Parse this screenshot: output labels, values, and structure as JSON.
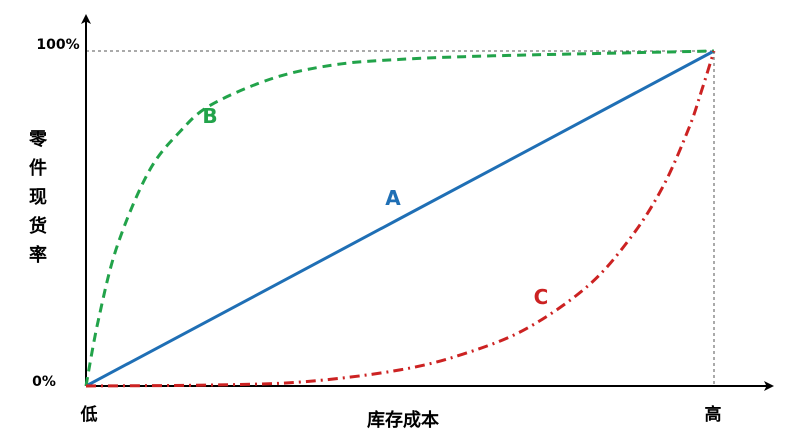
{
  "chart_data": {
    "type": "line",
    "title": "",
    "xlabel": "库存成本",
    "ylabel": "零件现货率",
    "x_tick_labels": [
      "低",
      "高"
    ],
    "y_tick_labels": [
      "0%",
      "100%"
    ],
    "xlim": [
      0,
      1
    ],
    "ylim": [
      0,
      100
    ],
    "grid": false,
    "legend": "none",
    "series": [
      {
        "name": "A",
        "color": "#1f6fb5",
        "style": "solid",
        "x": [
          0,
          0.25,
          0.5,
          0.75,
          1
        ],
        "y": [
          0,
          25,
          50,
          75,
          100
        ]
      },
      {
        "name": "B",
        "color": "#22a34a",
        "style": "dashed",
        "x": [
          0,
          0.02,
          0.05,
          0.1,
          0.15,
          0.2,
          0.3,
          0.4,
          0.5,
          0.6,
          0.7,
          0.8,
          0.9,
          1
        ],
        "y": [
          0,
          20,
          42,
          64,
          76,
          84,
          92,
          96,
          97.5,
          98.3,
          98.8,
          99.2,
          99.6,
          100
        ]
      },
      {
        "name": "C",
        "color": "#cc2222",
        "style": "dashdot",
        "x": [
          0,
          0.2,
          0.35,
          0.5,
          0.6,
          0.7,
          0.8,
          0.87,
          0.92,
          0.96,
          0.98,
          1
        ],
        "y": [
          0,
          0.3,
          1.3,
          4.8,
          9.5,
          17,
          30,
          45,
          60,
          77,
          88,
          100
        ]
      }
    ]
  }
}
